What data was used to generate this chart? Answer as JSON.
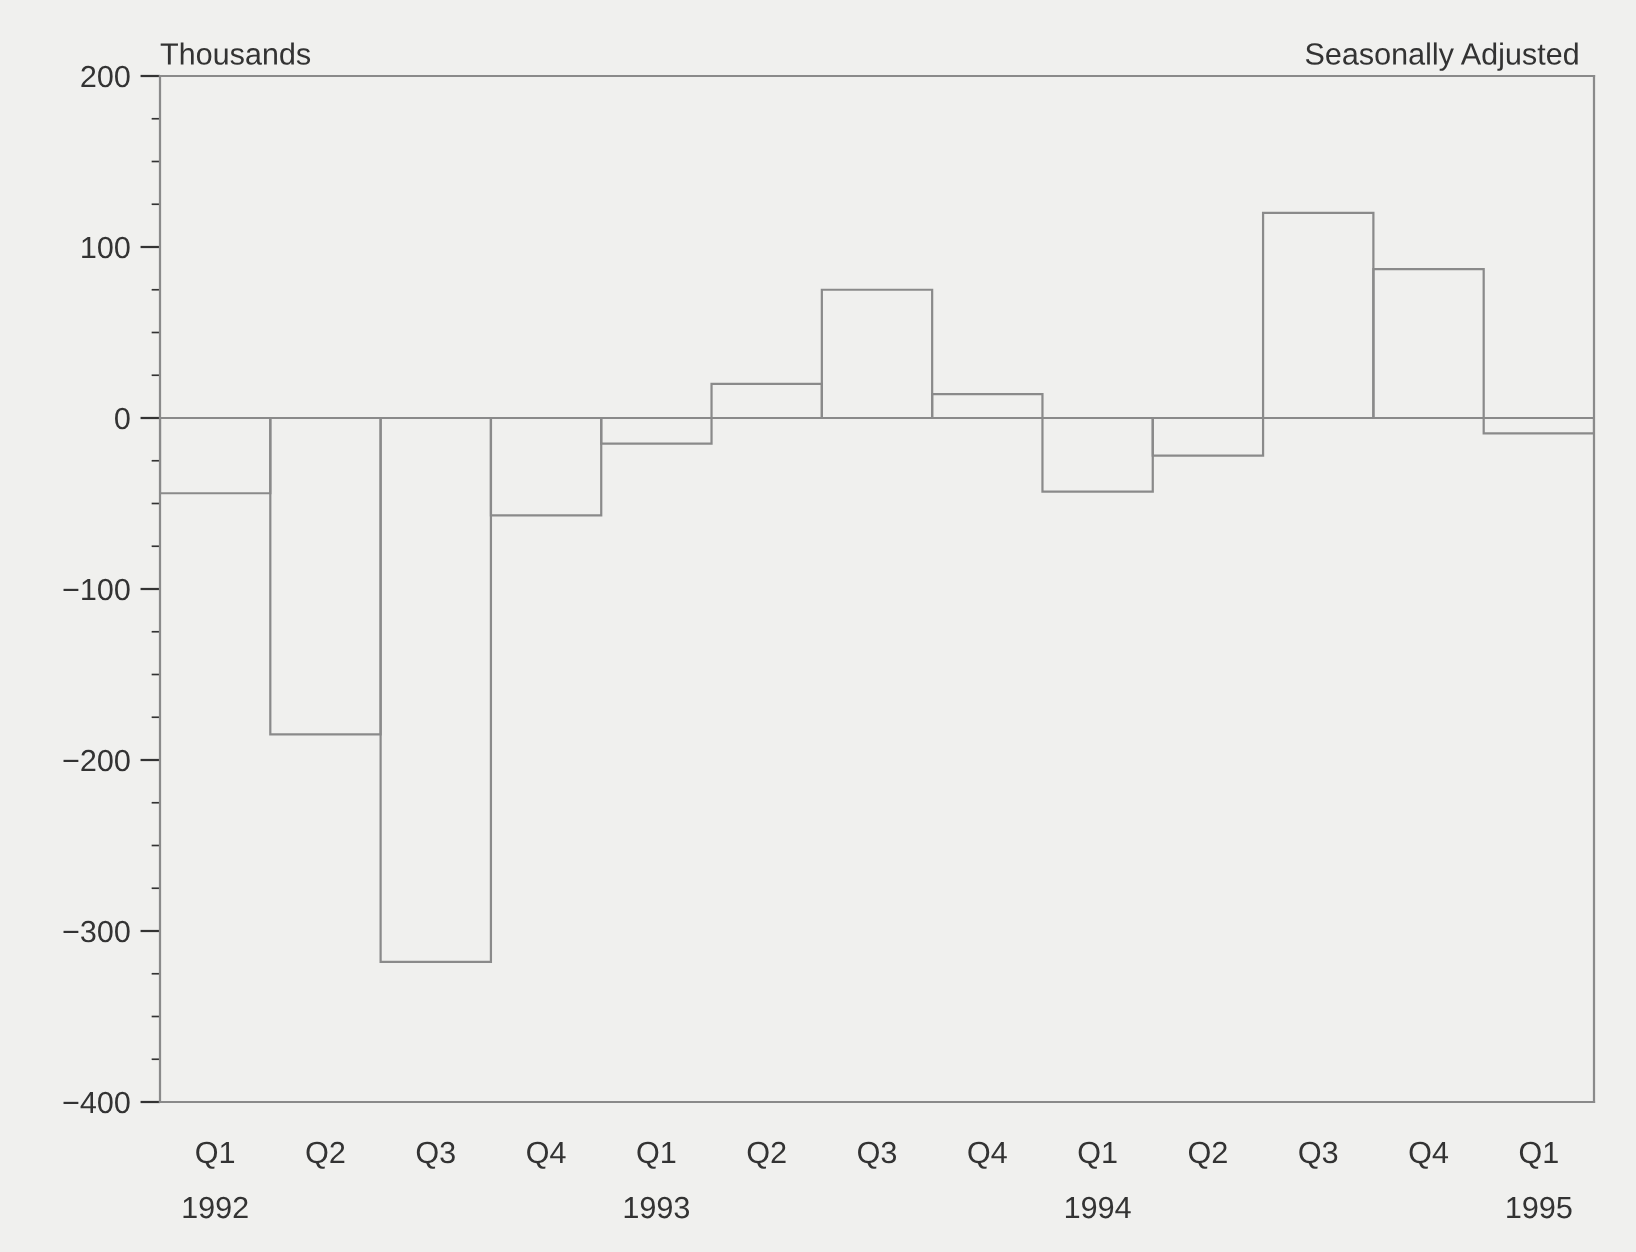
{
  "chart_data": {
    "type": "bar",
    "categories": [
      "Q1\n1992",
      "Q2",
      "Q3",
      "Q4",
      "Q1\n1993",
      "Q2",
      "Q3",
      "Q4",
      "Q1\n1994",
      "Q2",
      "Q3",
      "Q4",
      "Q1\n1995"
    ],
    "values": [
      -44,
      -185,
      -318,
      -57,
      -15,
      20,
      75,
      14,
      -43,
      -22,
      120,
      87,
      -9
    ],
    "color": "#8a8a8a",
    "ylim": [
      -400,
      200
    ],
    "yticks": [
      -400,
      {
        "value": -375,
        "label": null
      },
      {
        "value": -350,
        "label": null
      },
      {
        "value": -325,
        "label": null
      },
      -300,
      {
        "value": -275,
        "label": null
      },
      {
        "value": -250,
        "label": null
      },
      {
        "value": -225,
        "label": null
      },
      -200,
      {
        "value": -175,
        "label": null
      },
      {
        "value": -150,
        "label": null
      },
      {
        "value": -125,
        "label": null
      },
      -100,
      {
        "value": -75,
        "label": null
      },
      {
        "value": -50,
        "label": null
      },
      {
        "value": -25,
        "label": null
      },
      0,
      {
        "value": 25,
        "label": null
      },
      {
        "value": 50,
        "label": null
      },
      {
        "value": 75,
        "label": null
      },
      100,
      {
        "value": 125,
        "label": null
      },
      {
        "value": 150,
        "label": null
      },
      {
        "value": 175,
        "label": null
      },
      200
    ],
    "annotations": [
      "Thousands",
      "Seasonally Adjusted"
    ],
    "grid": false,
    "legend": false
  }
}
